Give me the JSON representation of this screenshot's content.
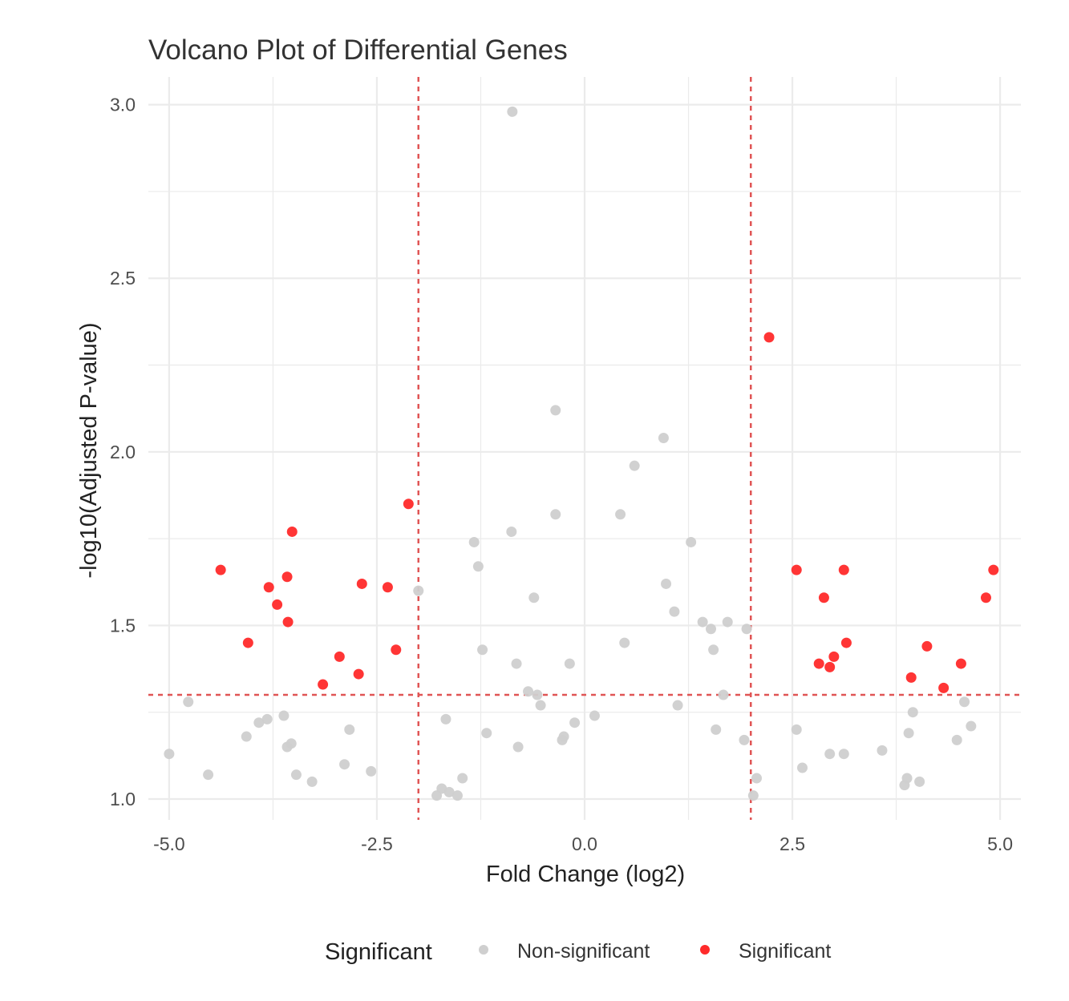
{
  "chart_data": {
    "type": "scatter",
    "title": "Volcano Plot of Differential Genes",
    "xlabel": "Fold Change (log2)",
    "ylabel": "-log10(Adjusted P-value)",
    "xlim": [
      -5.25,
      5.25
    ],
    "ylim": [
      0.94,
      3.08
    ],
    "x_ticks": [
      "-5.0",
      "-2.5",
      "0.0",
      "2.5",
      "5.0"
    ],
    "y_ticks": [
      "1.0",
      "1.5",
      "2.0",
      "2.5",
      "3.0"
    ],
    "x_tick_values": [
      -5,
      -2.5,
      0,
      2.5,
      5
    ],
    "y_tick_values": [
      1.0,
      1.5,
      2.0,
      2.5,
      3.0
    ],
    "grid": true,
    "thresholds": {
      "x": [
        -2,
        2
      ],
      "y": 1.3
    },
    "legend": {
      "title": "Significant",
      "position": "bottom",
      "entries": [
        "Non-significant",
        "Significant"
      ]
    },
    "colors": {
      "Non-significant": "#cfcfcf",
      "Significant": "#ff2a2a",
      "threshold": "#e05555"
    },
    "series": [
      {
        "name": "Non-significant",
        "points": [
          [
            -5.0,
            1.13
          ],
          [
            -4.77,
            1.28
          ],
          [
            -4.53,
            1.07
          ],
          [
            -4.07,
            1.18
          ],
          [
            -3.92,
            1.22
          ],
          [
            -3.82,
            1.23
          ],
          [
            -3.62,
            1.24
          ],
          [
            -3.58,
            1.15
          ],
          [
            -3.53,
            1.16
          ],
          [
            -3.47,
            1.07
          ],
          [
            -3.28,
            1.05
          ],
          [
            -2.89,
            1.1
          ],
          [
            -2.83,
            1.2
          ],
          [
            -2.57,
            1.08
          ],
          [
            -2.0,
            1.6
          ],
          [
            -1.78,
            1.01
          ],
          [
            -1.72,
            1.03
          ],
          [
            -1.67,
            1.23
          ],
          [
            -1.63,
            1.02
          ],
          [
            -1.53,
            1.01
          ],
          [
            -1.47,
            1.06
          ],
          [
            -1.33,
            1.74
          ],
          [
            -1.28,
            1.67
          ],
          [
            -1.23,
            1.43
          ],
          [
            -1.18,
            1.19
          ],
          [
            -0.87,
            2.98
          ],
          [
            -0.88,
            1.77
          ],
          [
            -0.82,
            1.39
          ],
          [
            -0.8,
            1.15
          ],
          [
            -0.68,
            1.31
          ],
          [
            -0.61,
            1.58
          ],
          [
            -0.57,
            1.3
          ],
          [
            -0.53,
            1.27
          ],
          [
            -0.35,
            1.82
          ],
          [
            -0.35,
            2.12
          ],
          [
            -0.27,
            1.17
          ],
          [
            -0.25,
            1.18
          ],
          [
            -0.18,
            1.39
          ],
          [
            -0.12,
            1.22
          ],
          [
            0.12,
            1.24
          ],
          [
            0.43,
            1.82
          ],
          [
            0.48,
            1.45
          ],
          [
            0.6,
            1.96
          ],
          [
            0.95,
            2.04
          ],
          [
            0.98,
            1.62
          ],
          [
            1.08,
            1.54
          ],
          [
            1.12,
            1.27
          ],
          [
            1.28,
            1.74
          ],
          [
            1.42,
            1.51
          ],
          [
            1.52,
            1.49
          ],
          [
            1.55,
            1.43
          ],
          [
            1.58,
            1.2
          ],
          [
            1.67,
            1.3
          ],
          [
            1.72,
            1.51
          ],
          [
            1.92,
            1.17
          ],
          [
            1.95,
            1.49
          ],
          [
            2.03,
            1.01
          ],
          [
            2.07,
            1.06
          ],
          [
            2.55,
            1.2
          ],
          [
            2.62,
            1.09
          ],
          [
            2.95,
            1.13
          ],
          [
            3.12,
            1.13
          ],
          [
            3.58,
            1.14
          ],
          [
            3.85,
            1.04
          ],
          [
            3.88,
            1.06
          ],
          [
            3.9,
            1.19
          ],
          [
            3.95,
            1.25
          ],
          [
            4.03,
            1.05
          ],
          [
            4.48,
            1.17
          ],
          [
            4.57,
            1.28
          ],
          [
            4.65,
            1.21
          ]
        ]
      },
      {
        "name": "Significant",
        "points": [
          [
            -4.38,
            1.66
          ],
          [
            -4.05,
            1.45
          ],
          [
            -3.8,
            1.61
          ],
          [
            -3.7,
            1.56
          ],
          [
            -3.58,
            1.64
          ],
          [
            -3.57,
            1.51
          ],
          [
            -3.52,
            1.77
          ],
          [
            -3.15,
            1.33
          ],
          [
            -2.95,
            1.41
          ],
          [
            -2.72,
            1.36
          ],
          [
            -2.68,
            1.62
          ],
          [
            -2.37,
            1.61
          ],
          [
            -2.27,
            1.43
          ],
          [
            -2.12,
            1.85
          ],
          [
            2.22,
            2.33
          ],
          [
            2.55,
            1.66
          ],
          [
            2.82,
            1.39
          ],
          [
            2.88,
            1.58
          ],
          [
            2.95,
            1.38
          ],
          [
            3.0,
            1.41
          ],
          [
            3.12,
            1.66
          ],
          [
            3.15,
            1.45
          ],
          [
            3.93,
            1.35
          ],
          [
            4.12,
            1.44
          ],
          [
            4.32,
            1.32
          ],
          [
            4.53,
            1.39
          ],
          [
            4.83,
            1.58
          ],
          [
            4.92,
            1.66
          ]
        ]
      }
    ]
  }
}
